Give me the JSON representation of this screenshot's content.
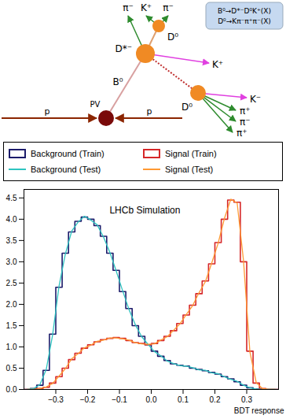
{
  "diagram": {
    "box_lines": [
      "B⁰→D*⁻D⁰K⁺(X)",
      "D⁰→Kπ⁻π⁺π⁻(X)"
    ],
    "pv": "PV",
    "beam": [
      "p",
      "p"
    ],
    "B": "B⁰",
    "Dstar": "D*⁻",
    "D0_top": "D⁰",
    "D0_bottom": "D⁰",
    "top_tracks": [
      "π⁻",
      "K⁺",
      "π⁻"
    ],
    "K_from_B": "K⁺",
    "K_from_D0": "K⁻",
    "bottom_tracks": [
      "π⁺",
      "π⁻",
      "π⁺"
    ]
  },
  "chart_data": {
    "type": "histogram",
    "xlabel": "BDT response",
    "xlim": [
      -0.4,
      0.4
    ],
    "ylim": [
      0,
      4.7
    ],
    "xticks": [
      -0.3,
      -0.2,
      -0.1,
      0,
      0.1,
      0.2,
      0.3
    ],
    "yticks": [
      0,
      0.5,
      1,
      1.5,
      2,
      2.5,
      3,
      3.5,
      4,
      4.5
    ],
    "legend": "top",
    "annotations": [
      {
        "text": "LHCb Simulation",
        "x": -0.02,
        "y": 4.2
      }
    ],
    "bins": [
      -0.4,
      -0.38,
      -0.36,
      -0.34,
      -0.32,
      -0.3,
      -0.28,
      -0.26,
      -0.24,
      -0.22,
      -0.2,
      -0.18,
      -0.16,
      -0.14,
      -0.12,
      -0.1,
      -0.08,
      -0.06,
      -0.04,
      -0.02,
      0,
      0.02,
      0.04,
      0.06,
      0.08,
      0.1,
      0.12,
      0.14,
      0.16,
      0.18,
      0.2,
      0.22,
      0.24,
      0.26,
      0.28,
      0.3,
      0.32,
      0.34,
      0.36,
      0.38,
      0.4
    ],
    "series": [
      {
        "name": "Background (Train)",
        "type": "histogram",
        "color": "#1c1c6b",
        "values": [
          0,
          0.02,
          0.1,
          0.45,
          1.3,
          2.4,
          3.2,
          3.7,
          3.95,
          4.05,
          4.0,
          3.85,
          3.6,
          3.2,
          2.8,
          2.3,
          1.9,
          1.5,
          1.25,
          1.05,
          0.9,
          0.78,
          0.68,
          0.6,
          0.57,
          0.55,
          0.5,
          0.47,
          0.44,
          0.4,
          0.36,
          0.3,
          0.25,
          0.18,
          0.1,
          0.04,
          0.01,
          0,
          0,
          0
        ]
      },
      {
        "name": "Signal (Train)",
        "type": "histogram",
        "color": "#d62728",
        "values": [
          0,
          0,
          0.02,
          0.05,
          0.15,
          0.3,
          0.5,
          0.7,
          0.85,
          0.97,
          1.05,
          1.12,
          1.17,
          1.2,
          1.22,
          1.2,
          1.15,
          1.1,
          1.08,
          1.05,
          1.08,
          1.15,
          1.25,
          1.38,
          1.55,
          1.75,
          1.98,
          2.25,
          2.55,
          2.95,
          3.45,
          4.0,
          4.45,
          4.4,
          3.0,
          0.9,
          0.15,
          0.02,
          0,
          0
        ]
      },
      {
        "name": "Background (Test)",
        "type": "line",
        "color": "#2ec4c0",
        "values": [
          0,
          0.02,
          0.11,
          0.47,
          1.28,
          2.42,
          3.18,
          3.72,
          3.93,
          4.07,
          3.98,
          3.87,
          3.58,
          3.22,
          2.78,
          2.32,
          1.88,
          1.52,
          1.24,
          1.06,
          0.89,
          0.79,
          0.67,
          0.61,
          0.56,
          0.55,
          0.51,
          0.46,
          0.45,
          0.39,
          0.37,
          0.3,
          0.24,
          0.19,
          0.1,
          0.04,
          0.01,
          0,
          0,
          0
        ]
      },
      {
        "name": "Signal (Test)",
        "type": "line",
        "color": "#ff9933",
        "values": [
          0,
          0,
          0.02,
          0.06,
          0.14,
          0.31,
          0.49,
          0.72,
          0.84,
          0.98,
          1.04,
          1.13,
          1.16,
          1.21,
          1.21,
          1.19,
          1.16,
          1.1,
          1.07,
          1.06,
          1.07,
          1.16,
          1.24,
          1.39,
          1.54,
          1.76,
          1.97,
          2.27,
          2.53,
          2.97,
          3.43,
          4.02,
          4.47,
          4.38,
          3.02,
          0.88,
          0.16,
          0.02,
          0,
          0
        ]
      }
    ]
  }
}
